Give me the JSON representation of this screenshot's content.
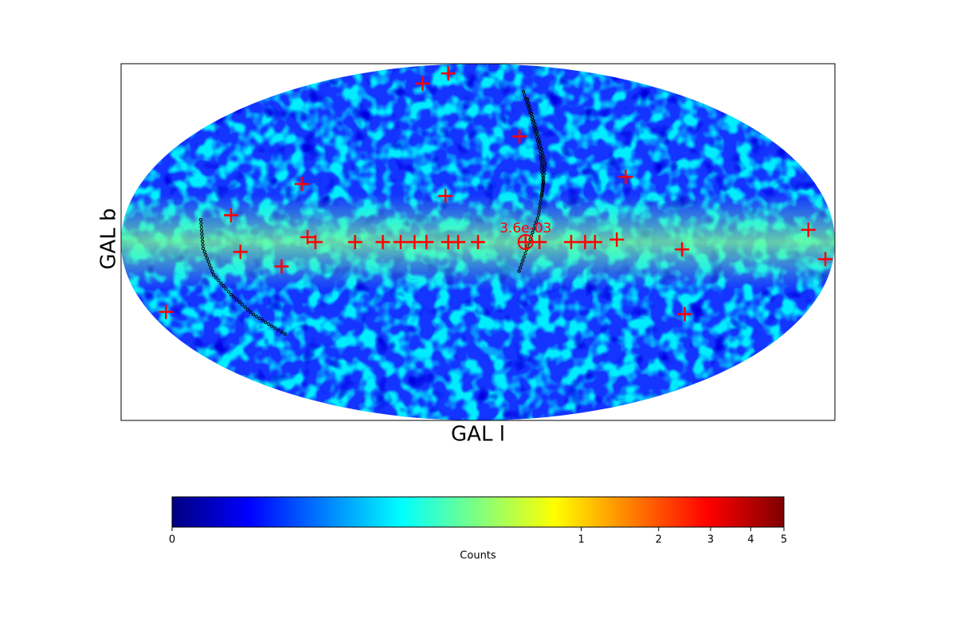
{
  "chart_data": {
    "type": "skymap",
    "projection": "mollweide",
    "xlabel": "GAL l",
    "ylabel": "GAL b",
    "xlim": [
      180,
      -180
    ],
    "ylim": [
      -90,
      90
    ],
    "series": [
      {
        "color": "#ff0000",
        "x": [
          46,
          61,
          -26,
          -80,
          94,
          17,
          126,
          -167,
          86,
          82,
          62,
          48,
          39,
          32,
          26,
          15,
          10,
          0,
          -24,
          -31,
          -47,
          -54,
          -59,
          -70,
          -103,
          120,
          -176,
          100,
          171,
          -114
        ],
        "y": [
          80,
          73,
          45,
          27,
          24,
          19,
          11,
          5,
          2,
          0,
          0,
          0,
          0,
          0,
          0,
          0,
          0,
          0,
          0,
          0,
          0,
          0,
          0,
          1,
          -3,
          -4,
          -7,
          -10,
          -29,
          -30
        ]
      }
    ],
    "annotation": {
      "text": "3.6e-03",
      "x": -24,
      "y": 0
    },
    "colorbar": {
      "label": "Counts",
      "colormap": "jet",
      "lim": [
        0,
        5
      ],
      "ticks": [
        0,
        1,
        2,
        3,
        4,
        5
      ],
      "exponent": 0.25
    }
  }
}
